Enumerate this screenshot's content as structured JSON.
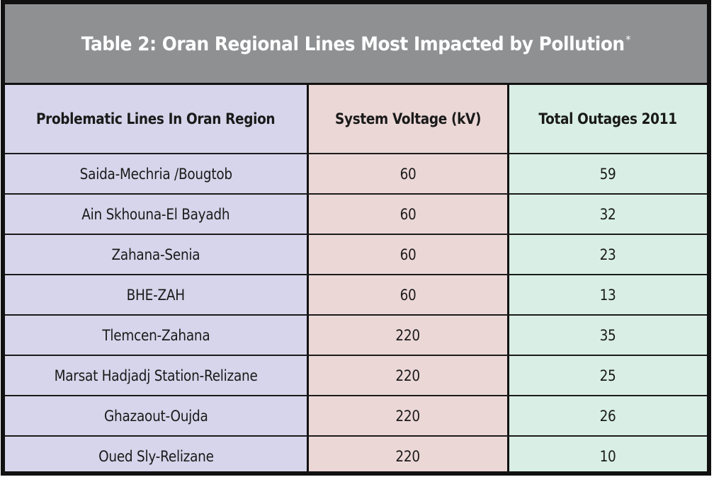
{
  "table": {
    "title": "Table 2: Oran Regional Lines Most Impacted by Pollution",
    "title_footnote_mark": "*",
    "headers": {
      "lines": "Problematic Lines In Oran Region",
      "voltage": "System Voltage (kV)",
      "outages": "Total Outages 2011"
    },
    "rows": [
      {
        "line": "Saida-Mechria /Bougtob",
        "voltage": "60",
        "outages": "59"
      },
      {
        "line": "Ain Skhouna-El Bayadh",
        "voltage": "60",
        "outages": "32"
      },
      {
        "line": "Zahana-Senia",
        "voltage": "60",
        "outages": "23"
      },
      {
        "line": "BHE-ZAH",
        "voltage": "60",
        "outages": "13"
      },
      {
        "line": "Tlemcen-Zahana",
        "voltage": "220",
        "outages": "35"
      },
      {
        "line": "Marsat Hadjadj Station-Relizane",
        "voltage": "220",
        "outages": "25"
      },
      {
        "line": "Ghazaout-Oujda",
        "voltage": "220",
        "outages": "26"
      },
      {
        "line": "Oued Sly-Relizane",
        "voltage": "220",
        "outages": "10"
      }
    ]
  },
  "colors": {
    "title_bar": "#8f9092",
    "col_lines": "#d7d5eb",
    "col_voltage": "#ecd7d7",
    "col_outages": "#d9efe6",
    "border": "#111111"
  }
}
